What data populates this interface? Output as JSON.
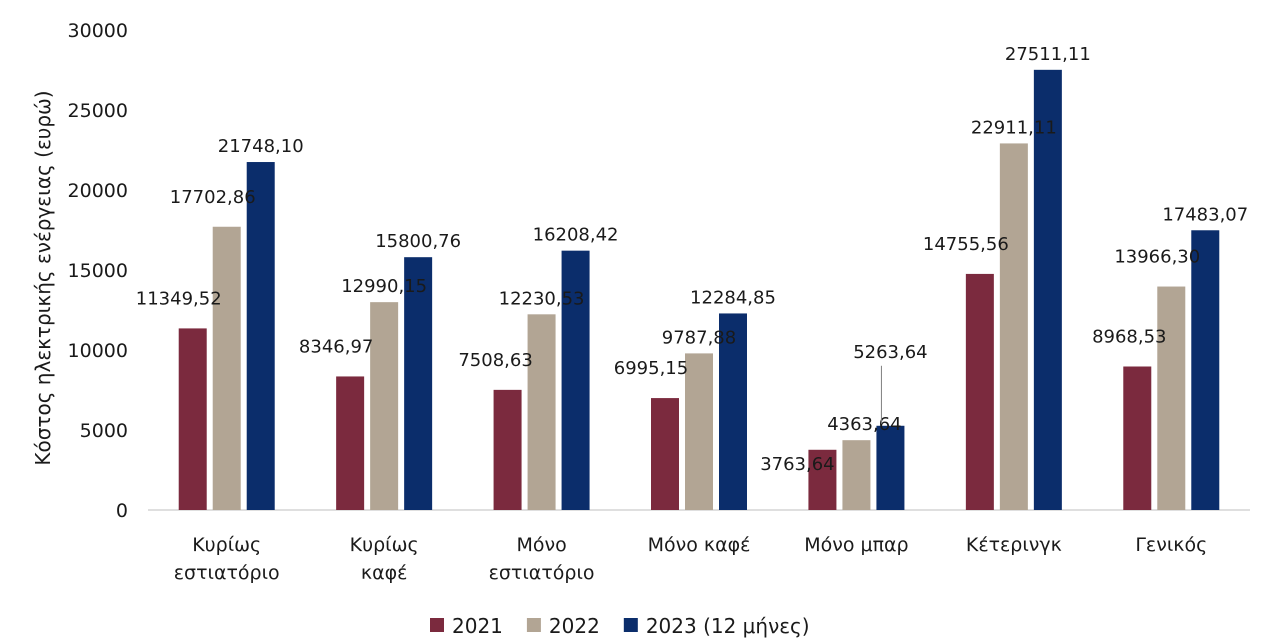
{
  "chart_data": {
    "type": "bar",
    "title": "",
    "xlabel": "",
    "ylabel": "Κόστος ηλεκτρικής ενέργειας (ευρώ)",
    "ylim": [
      0,
      30000
    ],
    "yticks": [
      "0",
      "5000",
      "10000",
      "15000",
      "20000",
      "25000",
      "30000"
    ],
    "grid": false,
    "legend_position": "bottom-center",
    "categories": [
      [
        "Κυρίως",
        "εστιατόριο"
      ],
      [
        "Κυρίως",
        "καφέ"
      ],
      [
        "Μόνο",
        "εστιατόριο"
      ],
      [
        "Μόνο καφέ"
      ],
      [
        "Μόνο μπαρ"
      ],
      [
        "Κέτερινγκ"
      ],
      [
        "Γενικός"
      ]
    ],
    "series": [
      {
        "name": "2021",
        "color": "#7b2a3e",
        "values": [
          11349.52,
          8346.97,
          7508.63,
          6995.15,
          3763.64,
          14755.56,
          8968.53
        ],
        "labels": [
          "11349,52",
          "8346,97",
          "7508,63",
          "6995,15",
          "3763,64",
          "14755,56",
          "8968,53"
        ]
      },
      {
        "name": "2022",
        "color": "#b2a594",
        "values": [
          17702.86,
          12990.15,
          12230.53,
          9787.88,
          4363.64,
          22911.11,
          13966.3
        ],
        "labels": [
          "17702,86",
          "12990,15",
          "12230,53",
          "9787,88",
          "4363,64",
          "22911,11",
          "13966,30"
        ]
      },
      {
        "name": "2023 (12 μήνες)",
        "color": "#0b2d6b",
        "values": [
          21748.1,
          15800.76,
          16208.42,
          12284.85,
          5263.64,
          27511.11,
          17483.07
        ],
        "labels": [
          "21748,10",
          "15800,76",
          "16208,42",
          "12284,85",
          "5263,64",
          "27511,11",
          "17483,07"
        ]
      }
    ]
  }
}
